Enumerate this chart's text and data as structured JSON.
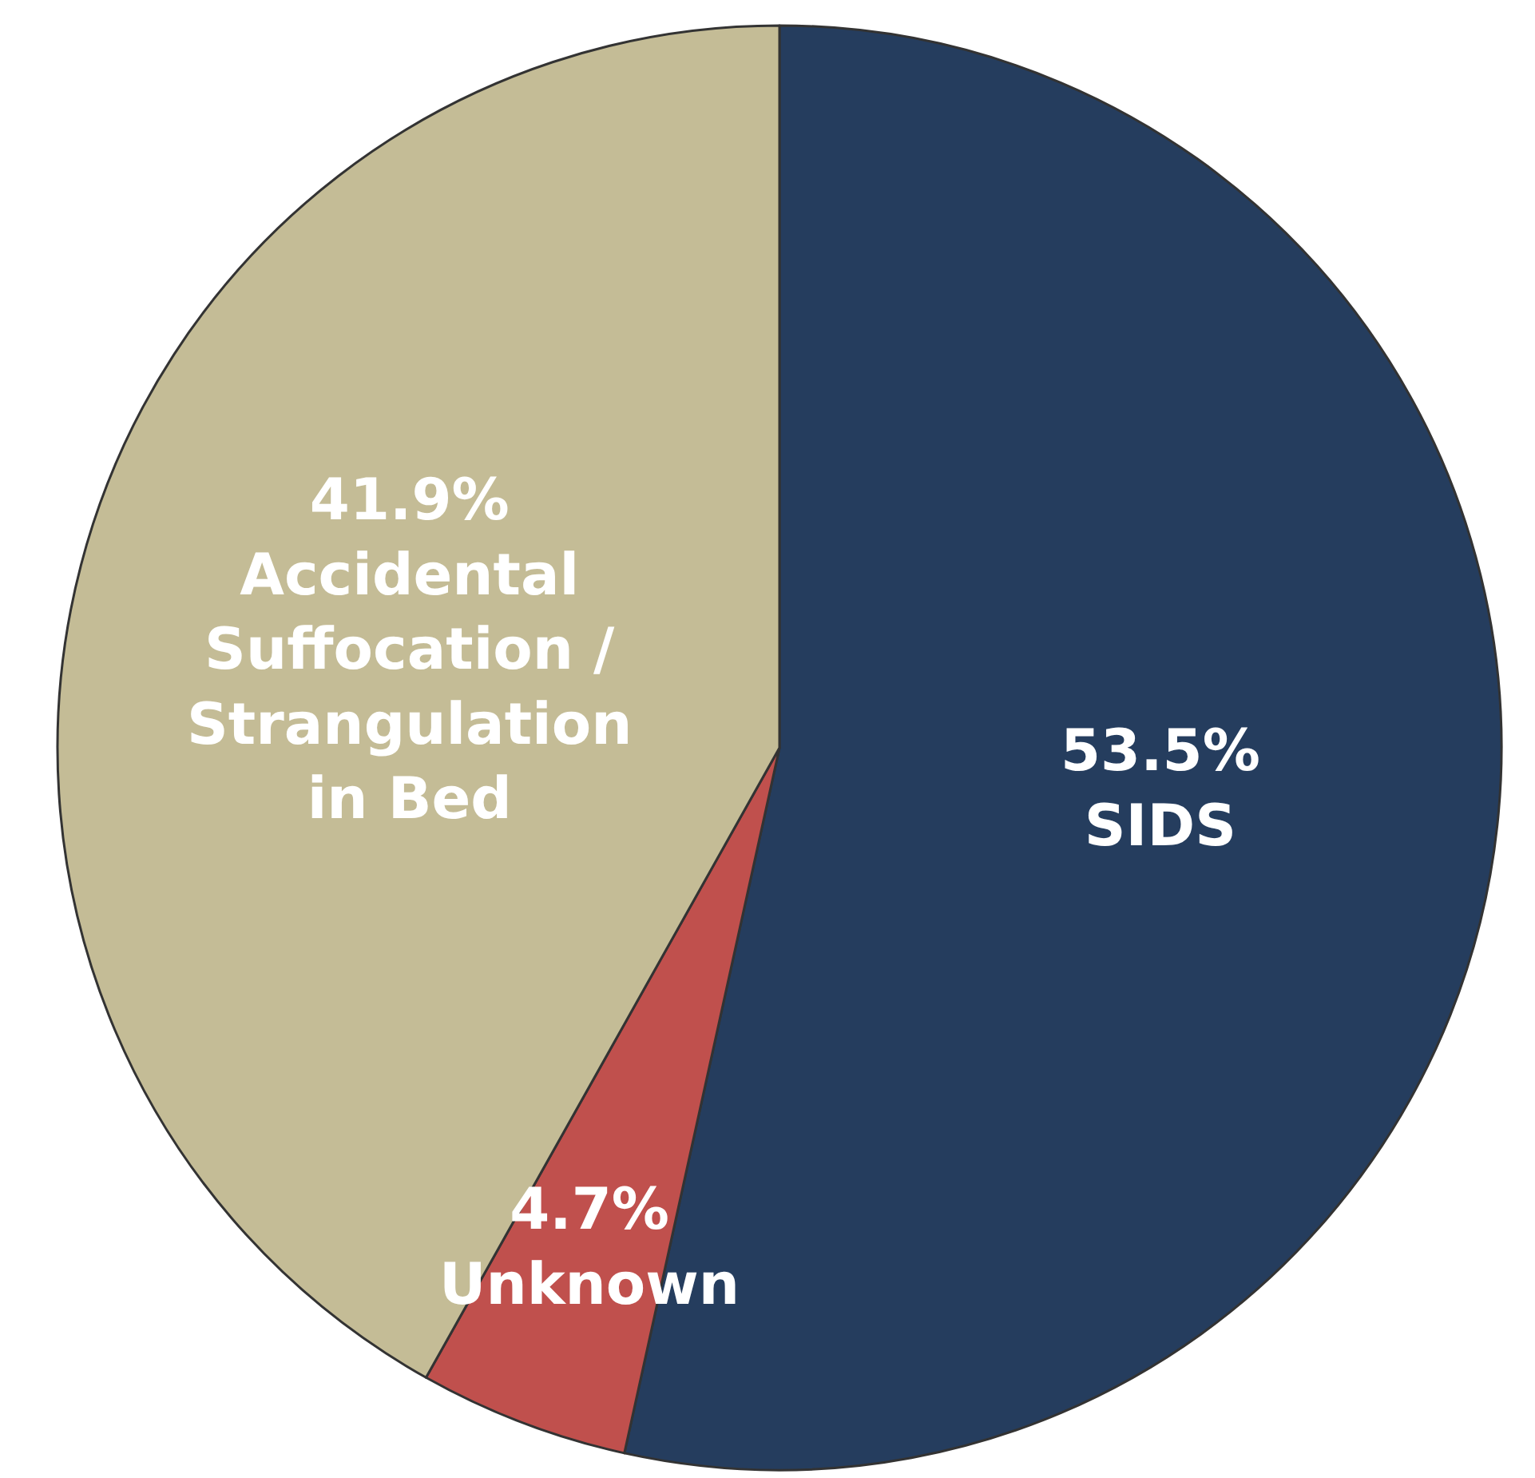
{
  "chart_data": {
    "type": "pie",
    "categories": [
      "SIDS",
      "Unknown",
      "Accidental Suffocation / Strangulation in Bed"
    ],
    "values": [
      53.5,
      4.7,
      41.9
    ],
    "value_labels": [
      "53.5%",
      "4.7%",
      "41.9%"
    ],
    "colors": [
      "#253d5e",
      "#c0504d",
      "#c4bc96"
    ],
    "legend": false
  }
}
